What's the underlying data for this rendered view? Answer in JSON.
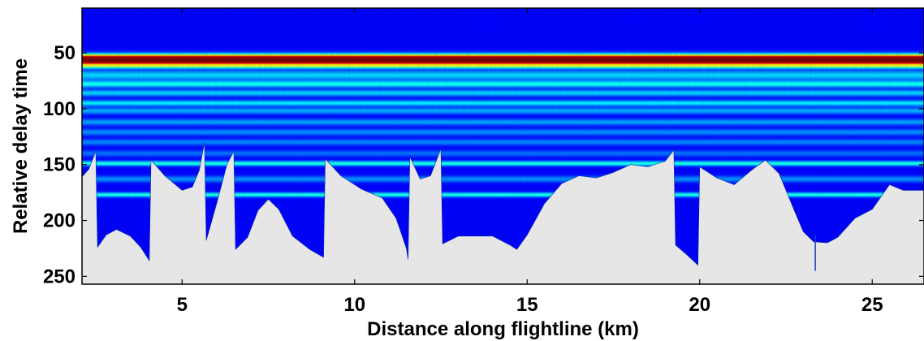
{
  "chart_data": {
    "type": "heatmap",
    "title": "",
    "xlabel": "Distance along flightline (km)",
    "ylabel": "Relative delay time",
    "xlim": [
      2.1,
      26.5
    ],
    "ylim": [
      257,
      10
    ],
    "y_inverted": true,
    "x_ticks": [
      5,
      10,
      15,
      20,
      25
    ],
    "y_ticks": [
      50,
      100,
      150,
      200,
      250
    ],
    "x_tick_labels": [
      "5",
      "10",
      "15",
      "20",
      "25"
    ],
    "y_tick_labels": [
      "50",
      "100",
      "150",
      "200",
      "250"
    ],
    "colormap": "jet",
    "background_color": "#00108c",
    "masked_color": "#e6e6e6",
    "bands": [
      {
        "delay": 55,
        "intensity": 1.0,
        "width": 2.5
      },
      {
        "delay": 58.5,
        "intensity": 0.55,
        "width": 1.5
      },
      {
        "delay": 62,
        "intensity": 0.4,
        "width": 1.4
      },
      {
        "delay": 70,
        "intensity": 0.22,
        "width": 3.0
      },
      {
        "delay": 78,
        "intensity": 0.28,
        "width": 2.0
      },
      {
        "delay": 86,
        "intensity": 0.22,
        "width": 2.0
      },
      {
        "delay": 95,
        "intensity": 0.25,
        "width": 1.8
      },
      {
        "delay": 102,
        "intensity": 0.18,
        "width": 2.0
      },
      {
        "delay": 112,
        "intensity": 0.17,
        "width": 2.0
      },
      {
        "delay": 121,
        "intensity": 0.15,
        "width": 2.0
      },
      {
        "delay": 130,
        "intensity": 0.14,
        "width": 2.0
      },
      {
        "delay": 140,
        "intensity": 0.12,
        "width": 2.0
      },
      {
        "delay": 149,
        "intensity": 0.3,
        "width": 1.5
      },
      {
        "delay": 163,
        "intensity": 0.15,
        "width": 2.0
      },
      {
        "delay": 177,
        "intensity": 0.3,
        "width": 1.4
      }
    ],
    "mask_boundary": [
      {
        "x": 2.1,
        "y": 161
      },
      {
        "x": 2.3,
        "y": 154
      },
      {
        "x": 2.5,
        "y": 138
      },
      {
        "x": 2.55,
        "y": 224
      },
      {
        "x": 2.8,
        "y": 213
      },
      {
        "x": 3.1,
        "y": 208
      },
      {
        "x": 3.5,
        "y": 214
      },
      {
        "x": 3.8,
        "y": 224
      },
      {
        "x": 4.05,
        "y": 236
      },
      {
        "x": 4.1,
        "y": 146
      },
      {
        "x": 4.5,
        "y": 160
      },
      {
        "x": 5.0,
        "y": 173
      },
      {
        "x": 5.3,
        "y": 170
      },
      {
        "x": 5.5,
        "y": 155
      },
      {
        "x": 5.65,
        "y": 130
      },
      {
        "x": 5.7,
        "y": 218
      },
      {
        "x": 6.0,
        "y": 185
      },
      {
        "x": 6.3,
        "y": 150
      },
      {
        "x": 6.5,
        "y": 138
      },
      {
        "x": 6.55,
        "y": 226
      },
      {
        "x": 6.9,
        "y": 215
      },
      {
        "x": 7.2,
        "y": 191
      },
      {
        "x": 7.5,
        "y": 181
      },
      {
        "x": 7.8,
        "y": 190
      },
      {
        "x": 8.2,
        "y": 214
      },
      {
        "x": 8.7,
        "y": 226
      },
      {
        "x": 9.1,
        "y": 233
      },
      {
        "x": 9.15,
        "y": 145
      },
      {
        "x": 9.6,
        "y": 160
      },
      {
        "x": 10.2,
        "y": 172
      },
      {
        "x": 10.8,
        "y": 180
      },
      {
        "x": 11.2,
        "y": 198
      },
      {
        "x": 11.5,
        "y": 225
      },
      {
        "x": 11.55,
        "y": 235
      },
      {
        "x": 11.6,
        "y": 143
      },
      {
        "x": 11.9,
        "y": 163
      },
      {
        "x": 12.2,
        "y": 160
      },
      {
        "x": 12.5,
        "y": 136
      },
      {
        "x": 12.55,
        "y": 221
      },
      {
        "x": 13.0,
        "y": 214
      },
      {
        "x": 14.0,
        "y": 214
      },
      {
        "x": 14.5,
        "y": 222
      },
      {
        "x": 14.7,
        "y": 226
      },
      {
        "x": 15.0,
        "y": 213
      },
      {
        "x": 15.5,
        "y": 185
      },
      {
        "x": 16.0,
        "y": 167
      },
      {
        "x": 16.5,
        "y": 160
      },
      {
        "x": 17.0,
        "y": 162
      },
      {
        "x": 17.5,
        "y": 157
      },
      {
        "x": 18.0,
        "y": 150
      },
      {
        "x": 18.5,
        "y": 152
      },
      {
        "x": 19.0,
        "y": 147
      },
      {
        "x": 19.25,
        "y": 137
      },
      {
        "x": 19.3,
        "y": 222
      },
      {
        "x": 19.6,
        "y": 230
      },
      {
        "x": 19.95,
        "y": 240
      },
      {
        "x": 20.0,
        "y": 152
      },
      {
        "x": 20.5,
        "y": 162
      },
      {
        "x": 21.0,
        "y": 168
      },
      {
        "x": 21.5,
        "y": 155
      },
      {
        "x": 21.9,
        "y": 146
      },
      {
        "x": 22.3,
        "y": 158
      },
      {
        "x": 22.7,
        "y": 188
      },
      {
        "x": 23.0,
        "y": 210
      },
      {
        "x": 23.3,
        "y": 219
      },
      {
        "x": 23.7,
        "y": 220
      },
      {
        "x": 24.0,
        "y": 215
      },
      {
        "x": 24.5,
        "y": 198
      },
      {
        "x": 25.0,
        "y": 190
      },
      {
        "x": 25.5,
        "y": 168
      },
      {
        "x": 25.9,
        "y": 173
      },
      {
        "x": 26.5,
        "y": 173
      }
    ],
    "spikes": [
      {
        "x": 23.35,
        "y_top": 213,
        "y_bottom": 245
      }
    ],
    "grid": false,
    "legend": "none"
  }
}
